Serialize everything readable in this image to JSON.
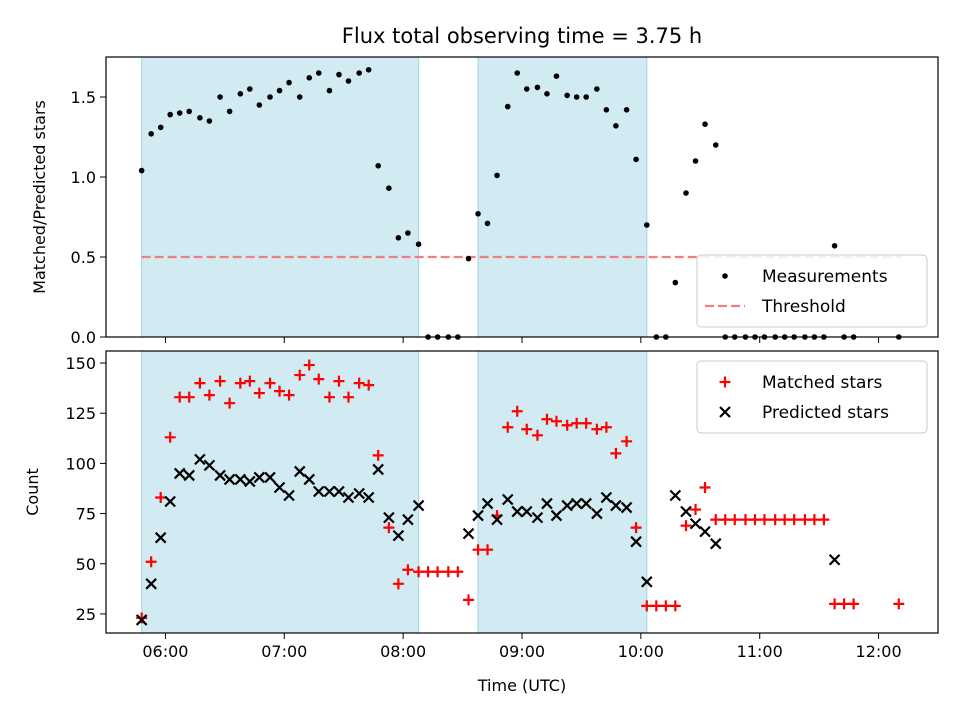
{
  "chart_data": {
    "title": "Flux total observing time = 3.75 h",
    "xlabel": "Time (UTC)",
    "x_unit": "hours UTC (decimal)",
    "xlim": [
      5.5,
      12.5
    ],
    "x_ticks": [
      6,
      7,
      8,
      9,
      10,
      11,
      12
    ],
    "x_tick_labels": [
      "06:00",
      "07:00",
      "08:00",
      "09:00",
      "10:00",
      "11:00",
      "12:00"
    ],
    "shaded_intervals": [
      [
        5.8,
        8.13
      ],
      [
        8.63,
        10.05
      ]
    ],
    "shade_color": "#add8e6",
    "panels": [
      {
        "type": "scatter",
        "ylabel": "Matched/Predicted stars",
        "ylim": [
          0,
          1.75
        ],
        "y_ticks": [
          0.0,
          0.5,
          1.0,
          1.5
        ],
        "y_tick_labels": [
          "0.0",
          "0.5",
          "1.0",
          "1.5"
        ],
        "legend_position": "lower right",
        "threshold": {
          "name": "Threshold",
          "value": 0.5,
          "x_range": [
            5.8,
            12.2
          ],
          "color": "#f08080"
        },
        "series": [
          {
            "name": "Measurements",
            "marker": "dot",
            "color": "#000000",
            "points": [
              [
                5.8,
                1.04
              ],
              [
                5.88,
                1.27
              ],
              [
                5.96,
                1.31
              ],
              [
                6.04,
                1.39
              ],
              [
                6.12,
                1.4
              ],
              [
                6.2,
                1.41
              ],
              [
                6.29,
                1.37
              ],
              [
                6.37,
                1.35
              ],
              [
                6.46,
                1.5
              ],
              [
                6.54,
                1.41
              ],
              [
                6.63,
                1.52
              ],
              [
                6.71,
                1.55
              ],
              [
                6.79,
                1.45
              ],
              [
                6.88,
                1.5
              ],
              [
                6.96,
                1.54
              ],
              [
                7.04,
                1.59
              ],
              [
                7.13,
                1.5
              ],
              [
                7.21,
                1.62
              ],
              [
                7.29,
                1.65
              ],
              [
                7.38,
                1.54
              ],
              [
                7.46,
                1.64
              ],
              [
                7.54,
                1.6
              ],
              [
                7.63,
                1.65
              ],
              [
                7.71,
                1.67
              ],
              [
                7.79,
                1.07
              ],
              [
                7.88,
                0.93
              ],
              [
                7.96,
                0.62
              ],
              [
                8.04,
                0.65
              ],
              [
                8.13,
                0.58
              ],
              [
                8.21,
                0.0
              ],
              [
                8.29,
                0.0
              ],
              [
                8.38,
                0.0
              ],
              [
                8.46,
                0.0
              ],
              [
                8.55,
                0.49
              ],
              [
                8.63,
                0.77
              ],
              [
                8.71,
                0.71
              ],
              [
                8.79,
                1.01
              ],
              [
                8.88,
                1.44
              ],
              [
                8.96,
                1.65
              ],
              [
                9.04,
                1.55
              ],
              [
                9.13,
                1.56
              ],
              [
                9.21,
                1.52
              ],
              [
                9.29,
                1.63
              ],
              [
                9.38,
                1.51
              ],
              [
                9.46,
                1.5
              ],
              [
                9.54,
                1.5
              ],
              [
                9.63,
                1.55
              ],
              [
                9.71,
                1.42
              ],
              [
                9.79,
                1.32
              ],
              [
                9.88,
                1.42
              ],
              [
                9.96,
                1.11
              ],
              [
                10.05,
                0.7
              ],
              [
                10.13,
                0.0
              ],
              [
                10.21,
                0.0
              ],
              [
                10.29,
                0.34
              ],
              [
                10.38,
                0.9
              ],
              [
                10.46,
                1.1
              ],
              [
                10.54,
                1.33
              ],
              [
                10.63,
                1.2
              ],
              [
                10.71,
                0.0
              ],
              [
                10.79,
                0.0
              ],
              [
                10.88,
                0.0
              ],
              [
                10.96,
                0.0
              ],
              [
                11.04,
                0.0
              ],
              [
                11.13,
                0.0
              ],
              [
                11.21,
                0.0
              ],
              [
                11.29,
                0.0
              ],
              [
                11.38,
                0.0
              ],
              [
                11.46,
                0.0
              ],
              [
                11.54,
                0.0
              ],
              [
                11.63,
                0.57
              ],
              [
                11.71,
                0.0
              ],
              [
                11.79,
                0.0
              ],
              [
                12.17,
                0.0
              ]
            ]
          }
        ]
      },
      {
        "type": "scatter",
        "ylabel": "Count",
        "ylim": [
          15.5,
          156
        ],
        "y_ticks": [
          25,
          50,
          75,
          100,
          125,
          150
        ],
        "y_tick_labels": [
          "25",
          "50",
          "75",
          "100",
          "125",
          "150"
        ],
        "legend_position": "upper right",
        "series": [
          {
            "name": "Matched stars",
            "marker": "plus",
            "color": "#ff0000",
            "points": [
              [
                5.8,
                23
              ],
              [
                5.88,
                51
              ],
              [
                5.96,
                83
              ],
              [
                6.04,
                113
              ],
              [
                6.12,
                133
              ],
              [
                6.2,
                133
              ],
              [
                6.29,
                140
              ],
              [
                6.37,
                134
              ],
              [
                6.46,
                141
              ],
              [
                6.54,
                130
              ],
              [
                6.63,
                140
              ],
              [
                6.71,
                141
              ],
              [
                6.79,
                135
              ],
              [
                6.88,
                140
              ],
              [
                6.96,
                136
              ],
              [
                7.04,
                134
              ],
              [
                7.13,
                144
              ],
              [
                7.21,
                149
              ],
              [
                7.29,
                142
              ],
              [
                7.38,
                133
              ],
              [
                7.46,
                141
              ],
              [
                7.54,
                133
              ],
              [
                7.63,
                140
              ],
              [
                7.71,
                139
              ],
              [
                7.79,
                104
              ],
              [
                7.88,
                68
              ],
              [
                7.96,
                40
              ],
              [
                8.04,
                47
              ],
              [
                8.13,
                46
              ],
              [
                8.21,
                46
              ],
              [
                8.29,
                46
              ],
              [
                8.38,
                46
              ],
              [
                8.46,
                46
              ],
              [
                8.55,
                32
              ],
              [
                8.63,
                57
              ],
              [
                8.71,
                57
              ],
              [
                8.79,
                74
              ],
              [
                8.88,
                118
              ],
              [
                8.96,
                126
              ],
              [
                9.04,
                117
              ],
              [
                9.13,
                114
              ],
              [
                9.21,
                122
              ],
              [
                9.29,
                121
              ],
              [
                9.38,
                119
              ],
              [
                9.46,
                120
              ],
              [
                9.54,
                120
              ],
              [
                9.63,
                117
              ],
              [
                9.71,
                118
              ],
              [
                9.79,
                105
              ],
              [
                9.88,
                111
              ],
              [
                9.96,
                68
              ],
              [
                10.05,
                29
              ],
              [
                10.13,
                29
              ],
              [
                10.21,
                29
              ],
              [
                10.29,
                29
              ],
              [
                10.38,
                69
              ],
              [
                10.46,
                77
              ],
              [
                10.54,
                88
              ],
              [
                10.63,
                72
              ],
              [
                10.71,
                72
              ],
              [
                10.79,
                72
              ],
              [
                10.88,
                72
              ],
              [
                10.96,
                72
              ],
              [
                11.04,
                72
              ],
              [
                11.13,
                72
              ],
              [
                11.21,
                72
              ],
              [
                11.29,
                72
              ],
              [
                11.38,
                72
              ],
              [
                11.46,
                72
              ],
              [
                11.54,
                72
              ],
              [
                11.63,
                30
              ],
              [
                11.71,
                30
              ],
              [
                11.79,
                30
              ],
              [
                12.17,
                30
              ]
            ]
          },
          {
            "name": "Predicted stars",
            "marker": "x",
            "color": "#000000",
            "points": [
              [
                5.8,
                22
              ],
              [
                5.88,
                40
              ],
              [
                5.96,
                63
              ],
              [
                6.04,
                81
              ],
              [
                6.12,
                95
              ],
              [
                6.2,
                94
              ],
              [
                6.29,
                102
              ],
              [
                6.37,
                99
              ],
              [
                6.46,
                94
              ],
              [
                6.54,
                92
              ],
              [
                6.63,
                92
              ],
              [
                6.71,
                91
              ],
              [
                6.79,
                93
              ],
              [
                6.88,
                93
              ],
              [
                6.96,
                88
              ],
              [
                7.04,
                84
              ],
              [
                7.13,
                96
              ],
              [
                7.21,
                92
              ],
              [
                7.29,
                86
              ],
              [
                7.38,
                86
              ],
              [
                7.46,
                86
              ],
              [
                7.54,
                83
              ],
              [
                7.63,
                85
              ],
              [
                7.71,
                83
              ],
              [
                7.79,
                97
              ],
              [
                7.88,
                73
              ],
              [
                7.96,
                64
              ],
              [
                8.04,
                72
              ],
              [
                8.13,
                79
              ],
              [
                8.55,
                65
              ],
              [
                8.63,
                74
              ],
              [
                8.71,
                80
              ],
              [
                8.79,
                72
              ],
              [
                8.88,
                82
              ],
              [
                8.96,
                76
              ],
              [
                9.04,
                76
              ],
              [
                9.13,
                73
              ],
              [
                9.21,
                80
              ],
              [
                9.29,
                74
              ],
              [
                9.38,
                79
              ],
              [
                9.46,
                80
              ],
              [
                9.54,
                80
              ],
              [
                9.63,
                75
              ],
              [
                9.71,
                83
              ],
              [
                9.79,
                79
              ],
              [
                9.88,
                78
              ],
              [
                9.96,
                61
              ],
              [
                10.05,
                41
              ],
              [
                10.29,
                84
              ],
              [
                10.38,
                76
              ],
              [
                10.46,
                70
              ],
              [
                10.54,
                66
              ],
              [
                10.63,
                60
              ],
              [
                11.63,
                52
              ]
            ]
          }
        ]
      }
    ]
  }
}
